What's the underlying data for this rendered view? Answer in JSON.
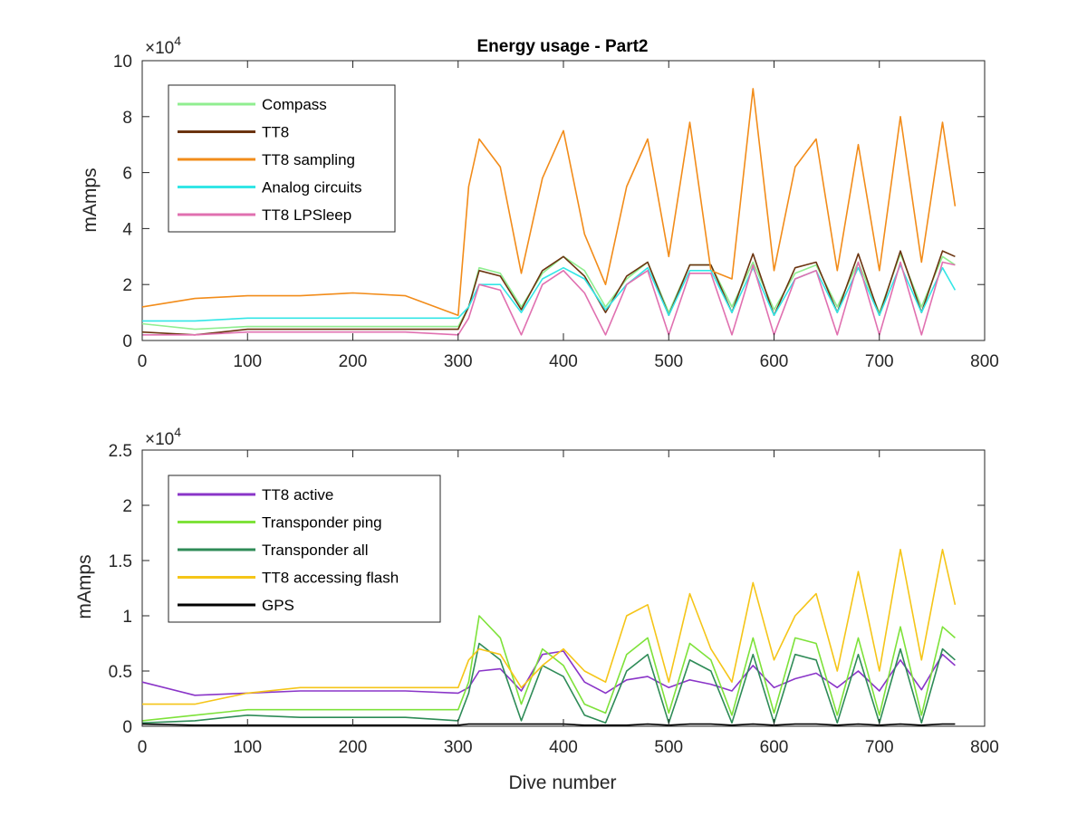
{
  "chart_data": [
    {
      "type": "line",
      "title": "Energy usage - Part2",
      "xlabel": "",
      "ylabel": "mAmps",
      "xlim": [
        0,
        800
      ],
      "ylim": [
        0,
        100000
      ],
      "y_exponent_label": "×10",
      "y_exponent_power": "4",
      "x_ticks": [
        "0",
        "100",
        "200",
        "300",
        "400",
        "500",
        "600",
        "700",
        "800"
      ],
      "y_ticks": [
        "0",
        "2",
        "4",
        "6",
        "8",
        "10"
      ],
      "legend_position": "top-left",
      "grid": false,
      "x": [
        0,
        50,
        100,
        150,
        200,
        250,
        300,
        310,
        320,
        340,
        360,
        380,
        400,
        420,
        440,
        460,
        480,
        500,
        520,
        540,
        560,
        580,
        600,
        620,
        640,
        660,
        680,
        700,
        720,
        740,
        760,
        772
      ],
      "series": [
        {
          "name": "Compass",
          "color": "#90ee90",
          "values": [
            6000,
            4000,
            5000,
            5000,
            5000,
            5000,
            5000,
            12000,
            26000,
            24000,
            12000,
            24000,
            30000,
            25000,
            12000,
            22000,
            28000,
            10000,
            27000,
            27000,
            12000,
            28000,
            11000,
            24000,
            27000,
            12000,
            28000,
            10000,
            31000,
            12000,
            30000,
            27000
          ]
        },
        {
          "name": "TT8",
          "color": "#6b3410",
          "values": [
            3000,
            2000,
            4000,
            4000,
            4000,
            4000,
            4000,
            12000,
            25000,
            23000,
            11000,
            25000,
            30000,
            23000,
            10000,
            23000,
            28000,
            9000,
            27000,
            27000,
            10000,
            31000,
            9000,
            26000,
            28000,
            10000,
            31000,
            9000,
            32000,
            10000,
            32000,
            30000
          ]
        },
        {
          "name": "TT8 sampling",
          "color": "#f28c1a",
          "values": [
            12000,
            15000,
            16000,
            16000,
            17000,
            16000,
            9000,
            55000,
            72000,
            62000,
            24000,
            58000,
            75000,
            38000,
            20000,
            55000,
            72000,
            30000,
            78000,
            25000,
            22000,
            90000,
            25000,
            62000,
            72000,
            25000,
            70000,
            25000,
            80000,
            28000,
            78000,
            48000
          ]
        },
        {
          "name": "Analog circuits",
          "color": "#33e6e6",
          "values": [
            7000,
            7000,
            8000,
            8000,
            8000,
            8000,
            8000,
            12000,
            20000,
            20000,
            10000,
            22000,
            26000,
            22000,
            11000,
            20000,
            26000,
            9000,
            25000,
            25000,
            10000,
            26000,
            9000,
            22000,
            25000,
            10000,
            26000,
            9000,
            27000,
            10000,
            26000,
            18000
          ]
        },
        {
          "name": "TT8 LPSleep",
          "color": "#e070b0",
          "values": [
            2000,
            2000,
            3000,
            3000,
            3000,
            3000,
            2000,
            8000,
            20000,
            18000,
            2000,
            20000,
            25000,
            17000,
            2000,
            20000,
            25000,
            2000,
            24000,
            24000,
            2000,
            27000,
            2000,
            22000,
            25000,
            2000,
            28000,
            2000,
            28000,
            2000,
            28000,
            27000
          ]
        }
      ]
    },
    {
      "type": "line",
      "title": "",
      "xlabel": "Dive number",
      "ylabel": "mAmps",
      "xlim": [
        0,
        800
      ],
      "ylim": [
        0,
        25000
      ],
      "y_exponent_label": "×10",
      "y_exponent_power": "4",
      "x_ticks": [
        "0",
        "100",
        "200",
        "300",
        "400",
        "500",
        "600",
        "700",
        "800"
      ],
      "y_ticks": [
        "0",
        "0.5",
        "1",
        "1.5",
        "2",
        "2.5"
      ],
      "legend_position": "top-left",
      "grid": false,
      "x": [
        0,
        50,
        100,
        150,
        200,
        250,
        300,
        310,
        320,
        340,
        360,
        380,
        400,
        420,
        440,
        460,
        480,
        500,
        520,
        540,
        560,
        580,
        600,
        620,
        640,
        660,
        680,
        700,
        720,
        740,
        760,
        772
      ],
      "series": [
        {
          "name": "TT8 active",
          "color": "#8a35c8",
          "values": [
            4000,
            2800,
            3000,
            3200,
            3200,
            3200,
            3000,
            3500,
            5000,
            5200,
            3200,
            6500,
            6800,
            4000,
            3000,
            4200,
            4500,
            3500,
            4200,
            3800,
            3200,
            5500,
            3500,
            4300,
            4800,
            3500,
            5000,
            3200,
            6000,
            3300,
            6500,
            5500
          ]
        },
        {
          "name": "Transponder ping",
          "color": "#7ee23a",
          "values": [
            500,
            1000,
            1500,
            1500,
            1500,
            1500,
            1500,
            4000,
            10000,
            8000,
            2000,
            7000,
            5500,
            2000,
            1200,
            6500,
            8000,
            1200,
            7500,
            6000,
            1000,
            8000,
            1200,
            8000,
            7500,
            1000,
            8000,
            1000,
            9000,
            1000,
            9000,
            8000
          ]
        },
        {
          "name": "Transponder all",
          "color": "#2e8b57",
          "values": [
            300,
            500,
            1000,
            800,
            800,
            800,
            500,
            3000,
            7500,
            6000,
            500,
            5500,
            4500,
            1000,
            300,
            5000,
            6500,
            300,
            6000,
            5000,
            300,
            6500,
            300,
            6500,
            6000,
            300,
            6500,
            300,
            7000,
            300,
            7000,
            6000
          ]
        },
        {
          "name": "TT8 accessing flash",
          "color": "#f5c518",
          "values": [
            2000,
            2000,
            3000,
            3500,
            3500,
            3500,
            3500,
            6000,
            7000,
            6500,
            3500,
            5500,
            7000,
            5000,
            4000,
            10000,
            11000,
            4000,
            12000,
            7000,
            4000,
            13000,
            6000,
            10000,
            12000,
            5000,
            14000,
            5000,
            16000,
            6000,
            16000,
            11000
          ]
        },
        {
          "name": "GPS",
          "color": "#000000",
          "values": [
            200,
            100,
            100,
            100,
            100,
            100,
            100,
            200,
            200,
            200,
            200,
            200,
            200,
            100,
            100,
            100,
            200,
            100,
            200,
            200,
            100,
            200,
            100,
            200,
            200,
            100,
            200,
            100,
            200,
            100,
            200,
            200
          ]
        }
      ]
    }
  ]
}
